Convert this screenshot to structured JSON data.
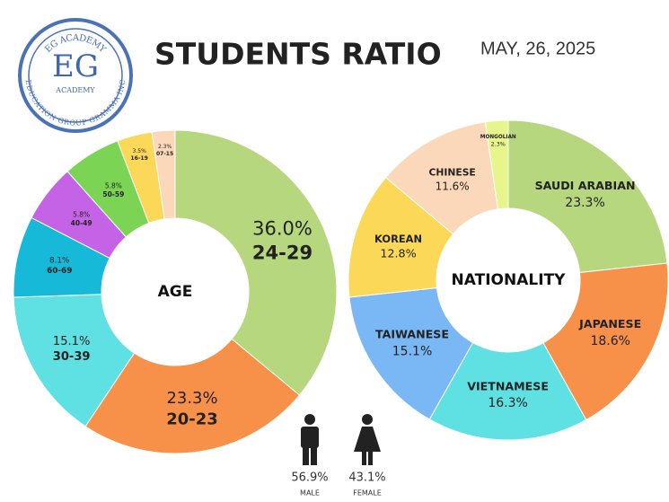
{
  "title": "STUDENTS RATIO",
  "date": "MAY, 26, 2025",
  "logo": {
    "top": "EG ACADEMY",
    "mark": "EG",
    "sub": "ACADEMY",
    "bottom": "EDUCATION GROUP GRAMMA INC"
  },
  "gender": [
    {
      "name": "MALE",
      "percent": "56.9%"
    },
    {
      "name": "FEMALE",
      "percent": "43.1%"
    }
  ],
  "chart_data": [
    {
      "type": "donut",
      "center_label": "AGE",
      "categories": [
        "24-29",
        "20-23",
        "30-39",
        "60-69",
        "40-49",
        "50-59",
        "16-19",
        "07-15"
      ],
      "values": [
        36.0,
        23.3,
        15.1,
        8.1,
        5.8,
        5.8,
        3.5,
        2.3
      ],
      "value_labels": [
        "36.0%",
        "23.3%",
        "15.1%",
        "8.1%",
        "5.8%",
        "5.8%",
        "3.5%",
        "2.3%"
      ],
      "colors": [
        "#b6d77e",
        "#f7914a",
        "#5fe1e3",
        "#17b9d9",
        "#c463e6",
        "#7bd454",
        "#fbd857",
        "#fcd8bb"
      ]
    },
    {
      "type": "donut",
      "center_label": "NATIONALITY",
      "categories": [
        "SAUDI ARABIAN",
        "JAPANESE",
        "VIETNAMESE",
        "TAIWANESE",
        "KOREAN",
        "CHINESE",
        "MONGOLIAN"
      ],
      "values": [
        23.3,
        18.6,
        16.3,
        15.1,
        12.8,
        11.6,
        2.3
      ],
      "value_labels": [
        "23.3%",
        "18.6%",
        "16.3%",
        "15.1%",
        "12.8%",
        "11.6%",
        "2.3%"
      ],
      "colors": [
        "#b6d77e",
        "#f7914a",
        "#5fe1e3",
        "#7ab8f5",
        "#fbd857",
        "#fcd8bb",
        "#e6f58c"
      ]
    }
  ]
}
